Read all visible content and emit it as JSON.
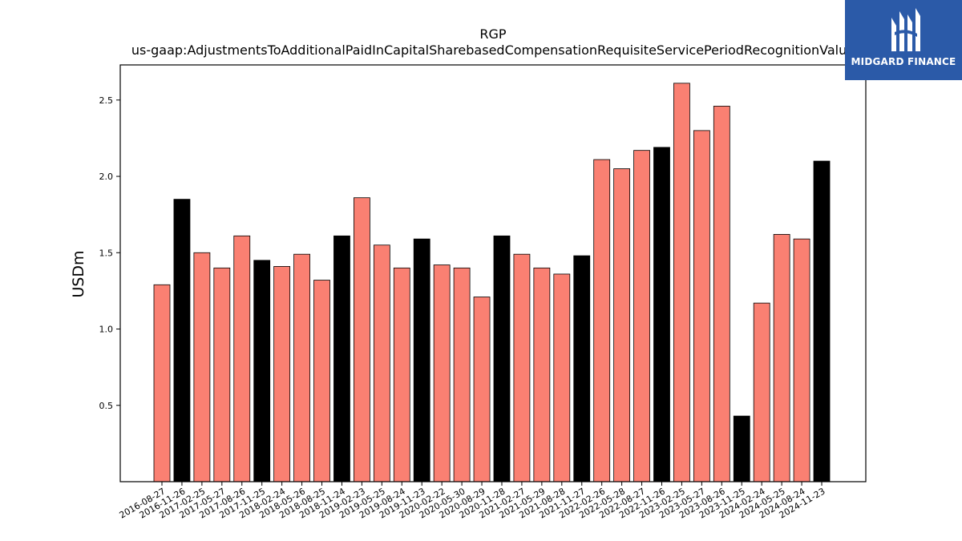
{
  "logo": {
    "text": "MIDGARD FINANCE",
    "background": "#2b5aa8"
  },
  "colors": {
    "bar_default": "#fa8072",
    "bar_highlight": "#000000"
  },
  "chart_data": {
    "type": "bar",
    "title": "RGP",
    "subtitle": "us-gaap:AdjustmentsToAdditionalPaidInCapitalSharebasedCompensationRequisiteServicePeriodRecognitionValue",
    "xlabel": "",
    "ylabel": "USDm",
    "ylim": [
      0,
      2.73
    ],
    "yticks": [
      0.5,
      1.0,
      1.5,
      2.0,
      2.5
    ],
    "ytick_labels": [
      "0.5",
      "1.0",
      "1.5",
      "2.0",
      "2.5"
    ],
    "grid": false,
    "categories": [
      "2016-08-27",
      "2016-11-26",
      "2017-02-25",
      "2017-05-27",
      "2017-08-26",
      "2017-11-25",
      "2018-02-24",
      "2018-05-26",
      "2018-08-25",
      "2018-11-24",
      "2019-02-23",
      "2019-05-25",
      "2019-08-24",
      "2019-11-23",
      "2020-02-22",
      "2020-05-30",
      "2020-08-29",
      "2020-11-28",
      "2021-02-27",
      "2021-05-29",
      "2021-08-28",
      "2021-11-27",
      "2022-02-26",
      "2022-05-28",
      "2022-08-27",
      "2022-11-26",
      "2023-02-25",
      "2023-05-27",
      "2023-08-26",
      "2023-11-25",
      "2024-02-24",
      "2024-05-25",
      "2024-08-24",
      "2024-11-23"
    ],
    "values": [
      1.29,
      1.85,
      1.5,
      1.4,
      1.61,
      1.45,
      1.41,
      1.49,
      1.32,
      1.61,
      1.86,
      1.55,
      1.4,
      1.59,
      1.42,
      1.4,
      1.21,
      1.61,
      1.49,
      1.4,
      1.36,
      1.48,
      2.11,
      2.05,
      2.17,
      2.19,
      2.61,
      2.3,
      2.46,
      0.43,
      1.17,
      1.62,
      1.59,
      2.1
    ],
    "highlight": [
      false,
      true,
      false,
      false,
      false,
      true,
      false,
      false,
      false,
      true,
      false,
      false,
      false,
      true,
      false,
      false,
      false,
      true,
      false,
      false,
      false,
      true,
      false,
      false,
      false,
      true,
      false,
      false,
      false,
      true,
      false,
      false,
      false,
      true
    ]
  }
}
